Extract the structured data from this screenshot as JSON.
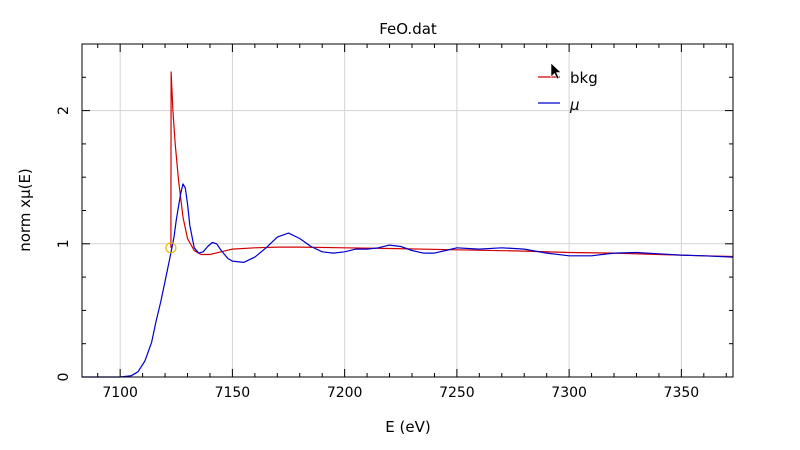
{
  "chart_data": {
    "type": "line",
    "title": "FeO.dat",
    "xlabel": "E (eV)",
    "ylabel": "norm xμ(E)",
    "xlim": [
      7083,
      7373
    ],
    "ylim": [
      0,
      2.5
    ],
    "x_ticks": [
      {
        "value": 7100,
        "label": "7100"
      },
      {
        "value": 7150,
        "label": "7150"
      },
      {
        "value": 7200,
        "label": "7200"
      },
      {
        "value": 7250,
        "label": "7250"
      },
      {
        "value": 7300,
        "label": "7300"
      },
      {
        "value": 7350,
        "label": "7350"
      }
    ],
    "y_ticks": [
      {
        "value": 0,
        "label": "0"
      },
      {
        "value": 1,
        "label": "1"
      },
      {
        "value": 2,
        "label": "2"
      }
    ],
    "grid": true,
    "legend_position": "top-right",
    "legend": [
      {
        "label": "bkg",
        "color": "#d40000"
      },
      {
        "label": "μ",
        "color": "#0000cc"
      }
    ],
    "series": [
      {
        "name": "bkg",
        "color": "#d40000",
        "x": [
          7122.6,
          7122.7,
          7123.5,
          7124.5,
          7126,
          7128,
          7130,
          7133,
          7136,
          7140,
          7145,
          7150,
          7160,
          7170,
          7180,
          7200,
          7220,
          7250,
          7280,
          7300,
          7320,
          7340,
          7360,
          7373
        ],
        "y": [
          0.97,
          2.29,
          2.0,
          1.75,
          1.48,
          1.2,
          1.04,
          0.95,
          0.92,
          0.92,
          0.94,
          0.96,
          0.97,
          0.975,
          0.975,
          0.97,
          0.965,
          0.955,
          0.945,
          0.935,
          0.93,
          0.92,
          0.91,
          0.905
        ]
      },
      {
        "name": "μ",
        "color": "#0000cc",
        "x": [
          7083,
          7100,
          7105,
          7108,
          7111,
          7114,
          7116,
          7118,
          7120,
          7122,
          7124,
          7125,
          7126,
          7127,
          7128,
          7129,
          7130,
          7131,
          7133,
          7135,
          7137,
          7139,
          7141,
          7143,
          7145,
          7148,
          7150,
          7155,
          7160,
          7165,
          7170,
          7175,
          7180,
          7185,
          7190,
          7195,
          7200,
          7205,
          7210,
          7215,
          7220,
          7225,
          7230,
          7235,
          7240,
          7245,
          7250,
          7255,
          7260,
          7270,
          7280,
          7290,
          7300,
          7310,
          7320,
          7330,
          7340,
          7350,
          7360,
          7373
        ],
        "y": [
          0.0,
          0.0,
          0.01,
          0.04,
          0.12,
          0.26,
          0.42,
          0.56,
          0.72,
          0.88,
          1.05,
          1.18,
          1.28,
          1.38,
          1.45,
          1.42,
          1.3,
          1.14,
          0.97,
          0.93,
          0.94,
          0.98,
          1.01,
          1.0,
          0.95,
          0.89,
          0.87,
          0.86,
          0.9,
          0.97,
          1.05,
          1.08,
          1.04,
          0.98,
          0.94,
          0.93,
          0.94,
          0.96,
          0.96,
          0.97,
          0.99,
          0.98,
          0.95,
          0.93,
          0.93,
          0.95,
          0.97,
          0.965,
          0.96,
          0.97,
          0.96,
          0.93,
          0.91,
          0.91,
          0.93,
          0.935,
          0.925,
          0.915,
          0.91,
          0.9
        ]
      }
    ],
    "marker": {
      "shape": "circle",
      "color": "#e6b800",
      "x": 7122.6,
      "y": 0.97
    }
  }
}
